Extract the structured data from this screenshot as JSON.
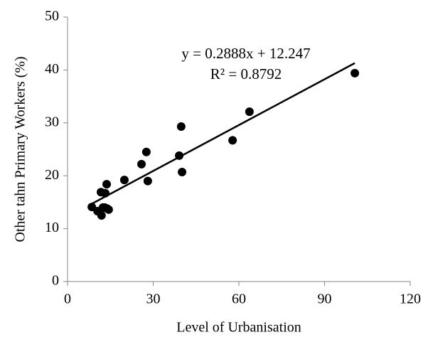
{
  "chart_data": {
    "type": "scatter",
    "x_label": "Level of Urbanisation",
    "y_label": "Other tahn Primary Workers (%)",
    "annotations": [
      "y = 0.2888x + 12.247",
      "R² = 0.8792"
    ],
    "x": [
      8.5,
      10.5,
      11.7,
      11.9,
      12.4,
      13.2,
      13.7,
      13.9,
      13.0,
      14.4,
      19.9,
      25.9,
      27.6,
      28.1,
      39.1,
      39.8,
      40.1,
      57.8,
      63.7,
      100.6
    ],
    "values": [
      14.1,
      13.3,
      16.9,
      12.5,
      14.0,
      16.7,
      18.4,
      13.8,
      14.0,
      13.6,
      19.2,
      22.2,
      24.5,
      19.0,
      23.8,
      29.3,
      20.7,
      26.7,
      32.1,
      39.4
    ],
    "color": "#000000",
    "trendline": {
      "slope": 0.2888,
      "intercept": 12.247,
      "color": "#000000"
    },
    "xlim": [
      0,
      120
    ],
    "xticks": [
      0,
      30,
      60,
      90,
      120
    ],
    "ylim": [
      0,
      50
    ],
    "yticks": [
      0,
      10,
      20,
      30,
      40,
      50
    ],
    "grid": false
  }
}
